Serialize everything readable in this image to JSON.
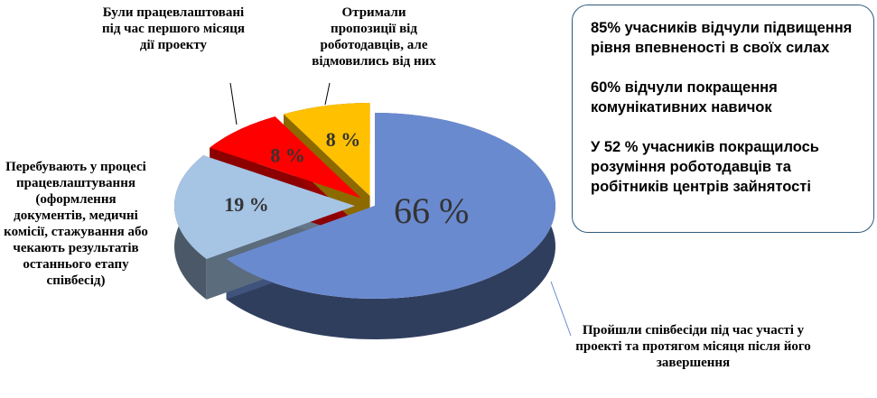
{
  "chart_data": {
    "type": "pie",
    "categories": [
      "Пройшли співбесіди під час участі у проекті та протягом місяця після його завершення",
      "Перебувають у процесі працевлаштування (оформлення документів, медичні комісії, стажування або чекають результатів останнього етапу співбесід)",
      "Були працевлаштовані під час першого місяця дії проекту",
      "Отримали пропозиції від роботодавців, але відмовились від них"
    ],
    "values": [
      66,
      19,
      8,
      8
    ],
    "value_labels": [
      "66 %",
      "19 %",
      "8 %",
      "8 %"
    ],
    "colors": [
      "#6a8ad0",
      "#a6c4e4",
      "#ff0000",
      "#ffc000"
    ],
    "annotations": [
      "85% учасників відчули підвищення рівня впевненості в своїх силах",
      "60% відчули покращення комунікативних навичок",
      "У 52 % учасників покращилось розуміння роботодавців та робітників центрів зайнятості"
    ]
  }
}
